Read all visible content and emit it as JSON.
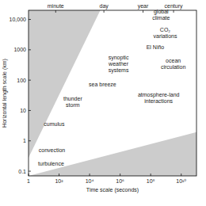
{
  "chart_data": {
    "type": "annotated_log",
    "x_label": "Time scale (seconds)",
    "y_label": "Horizontal length scale (km)",
    "log": true,
    "xlim": [
      1,
      100000000000
    ],
    "ylim": [
      0.07,
      20000
    ],
    "xticks": [
      1,
      {
        "value": 100,
        "label": "10²"
      },
      {
        "value": 10000,
        "label": "10⁴"
      },
      {
        "value": 1000000,
        "label": "10⁶"
      },
      {
        "value": 100000000,
        "label": "10⁸"
      },
      {
        "value": 10000000000,
        "label": "10¹⁰"
      }
    ],
    "yticks": [
      0.1,
      1,
      10,
      100,
      1000,
      {
        "value": 10000,
        "label": "10,000"
      }
    ],
    "x2ticks": [
      {
        "value": 60,
        "label": "minute"
      },
      {
        "value": 86400,
        "label": "day"
      },
      {
        "value": 31536000,
        "label": "year"
      },
      {
        "value": 3153600000,
        "label": "century"
      }
    ],
    "color": "#cccccc",
    "regions": [
      {
        "x": [
          1,
          50000,
          1
        ],
        "y": [
          0.28,
          20000,
          20000
        ]
      },
      {
        "x": [
          1,
          100000000000,
          100000000000
        ],
        "y": [
          0.07,
          1.95,
          0.07
        ]
      }
    ],
    "annotations": [
      {
        "lines": [
          "global",
          "climate"
        ],
        "x": 480000000,
        "y": 14500
      },
      {
        "lines": [
          "CO₂",
          "variations"
        ],
        "x": 890000000,
        "y": 3550
      },
      {
        "lines": [
          "El Niño"
        ],
        "x": 200000000,
        "y": 1200
      },
      {
        "lines": [
          "ocean",
          "circulation"
        ],
        "x": 3000000000,
        "y": 340
      },
      {
        "lines": [
          "synoptic",
          "weather",
          "systems"
        ],
        "x": 780000,
        "y": 340
      },
      {
        "lines": [
          "sea breeze"
        ],
        "x": 70000,
        "y": 74
      },
      {
        "lines": [
          "thunder",
          "storm"
        ],
        "x": 790,
        "y": 19.5
      },
      {
        "lines": [
          "atmosphere-land",
          "interactions"
        ],
        "x": 330000000,
        "y": 26
      },
      {
        "lines": [
          "cumulus"
        ],
        "x": 48,
        "y": 3.6
      },
      {
        "lines": [
          "convection"
        ],
        "x": 34,
        "y": 0.48
      },
      {
        "lines": [
          "turbulence"
        ],
        "x": 30,
        "y": 0.18
      }
    ]
  }
}
